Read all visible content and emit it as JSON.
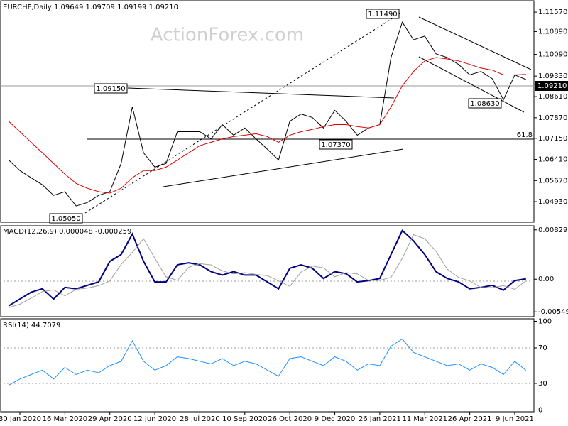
{
  "chart_data": [
    {
      "type": "line",
      "title": "EURCHF,Daily  1.09649 1.09709 1.09199 1.09210",
      "watermark": "ActionForex.com",
      "categories": [
        null,
        "30 Jan 2020",
        null,
        null,
        null,
        "16 Mar 2020",
        null,
        null,
        null,
        "29 Apr 2020",
        null,
        null,
        null,
        "12 Jun 2020",
        null,
        null,
        null,
        "28 Jul 2020",
        null,
        null,
        null,
        "10 Sep 2020",
        null,
        null,
        null,
        "26 Oct 2020",
        null,
        null,
        null,
        "9 Dec 2020",
        null,
        null,
        null,
        "26 Jan 2021",
        null,
        null,
        null,
        "11 Mar 2021",
        null,
        null,
        null,
        "26 Apr 2021",
        null,
        null,
        null,
        "9 Jun 2021",
        null
      ],
      "series": [
        {
          "color": "#000000",
          "values": [
            1.0639,
            1.0602,
            1.0577,
            1.0552,
            1.0515,
            1.0528,
            1.0478,
            1.049,
            1.0515,
            1.0528,
            1.0627,
            1.0825,
            1.0664,
            1.0614,
            1.0627,
            1.0738,
            1.0738,
            1.0738,
            1.0713,
            1.0763,
            1.0726,
            1.0751,
            1.0713,
            1.0677,
            1.0639,
            1.0775,
            1.08,
            1.0788,
            1.0751,
            1.0813,
            1.0775,
            1.0726,
            1.0751,
            1.0763,
            1.0998,
            1.1122,
            1.106,
            1.1073,
            1.1011,
            1.0998,
            1.0974,
            1.0937,
            1.0949,
            1.0924,
            1.085,
            1.0937,
            1.0921
          ]
        },
        {
          "color": "#e00000",
          "values": [
            1.0775,
            1.0738,
            1.0701,
            1.0664,
            1.0627,
            1.059,
            1.0557,
            1.054,
            1.0528,
            1.0523,
            1.054,
            1.0577,
            1.0602,
            1.0602,
            1.0614,
            1.0639,
            1.0664,
            1.0689,
            1.0701,
            1.0713,
            1.0721,
            1.0726,
            1.0731,
            1.0721,
            1.0701,
            1.0726,
            1.0738,
            1.0746,
            1.0756,
            1.0763,
            1.0763,
            1.0756,
            1.0751,
            1.0763,
            1.0825,
            1.0899,
            1.0949,
            1.0986,
            1.0998,
            1.0993,
            1.0986,
            1.0974,
            1.0961,
            1.0954,
            1.0937,
            1.0937,
            1.0939
          ]
        }
      ],
      "ylim": [
        1.0421,
        1.1197
      ],
      "yticks": [
        {
          "value": 1.1157,
          "label": "1.11570"
        },
        {
          "value": 1.1089,
          "label": "1.10890"
        },
        {
          "value": 1.1009,
          "label": "1.10090"
        },
        {
          "value": 1.0933,
          "label": "1.09330"
        },
        {
          "value": 1.0861,
          "label": "1.08610"
        },
        {
          "value": 1.0787,
          "label": "1.07870"
        },
        {
          "value": 1.0715,
          "label": "1.07150"
        },
        {
          "value": 1.0641,
          "label": "1.06410"
        },
        {
          "value": 1.0567,
          "label": "1.05670"
        },
        {
          "value": 1.0493,
          "label": "1.04930"
        }
      ],
      "price_label": "1.09210",
      "annotations": [
        "1.11490",
        "1.09150",
        "1.08630",
        "1.07370",
        "1.05050",
        "61.8"
      ]
    },
    {
      "type": "line",
      "title": "MACD(12,26,9) 0.000048 -0.000259",
      "series": [
        {
          "color": "#000080",
          "values": [
            -0.00449,
            -0.00334,
            -0.00219,
            -0.00161,
            -0.00334,
            -0.00138,
            -0.00161,
            -0.00104,
            -0.00046,
            0.003,
            0.00415,
            0.0076,
            0.003,
            -0.00046,
            -0.00046,
            0.00242,
            0.00276,
            0.00242,
            0.00127,
            0.00069,
            0.00127,
            0.00069,
            0.00069,
            -0.00046,
            -0.00161,
            0.00184,
            0.00242,
            0.00184,
            0.00012,
            0.00127,
            0.00092,
            -0.00046,
            -0.00023,
            0.00012,
            0.00415,
            0.00818,
            0.00645,
            0.00415,
            0.00127,
            0.00012,
            -0.00046,
            -0.00161,
            -0.00138,
            -0.00104,
            -0.00184,
            -0.00023,
            4.8e-05
          ]
        },
        {
          "color": "#a0a0a0",
          "values": [
            -0.0048,
            -0.0042,
            -0.0032,
            -0.0021,
            -0.0018,
            -0.0028,
            -0.0017,
            -0.0015,
            -0.0011,
            -0.0003,
            0.0025,
            0.0045,
            0.0068,
            0.0035,
            0.0004,
            -0.0002,
            0.002,
            0.0026,
            0.0024,
            0.0014,
            0.0009,
            0.0011,
            0.0008,
            0.0006,
            -0.0003,
            -0.0012,
            0.0012,
            0.0022,
            0.0019,
            0.0004,
            0.0011,
            0.0009,
            -0.0002,
            -0.0002,
            0.0003,
            0.0035,
            0.0075,
            0.0068,
            0.0047,
            0.0017,
            0.0003,
            -0.0003,
            -0.0014,
            -0.0014,
            -0.0011,
            -0.0017,
            -0.000259
          ]
        }
      ],
      "ylim": [
        -0.0063,
        0.00898
      ],
      "yticks": [
        0.008291,
        {
          "value": 0,
          "label": "0.00"
        },
        -0.005492
      ]
    },
    {
      "type": "line",
      "title": "RSI(14) 44.7079",
      "series": [
        {
          "color": "#1e90ff",
          "values": [
            28,
            35,
            40,
            45,
            35,
            48,
            40,
            45,
            42,
            50,
            55,
            78,
            55,
            45,
            50,
            60,
            58,
            55,
            52,
            58,
            50,
            55,
            52,
            45,
            38,
            58,
            60,
            55,
            50,
            60,
            55,
            45,
            52,
            50,
            72,
            80,
            65,
            60,
            55,
            50,
            52,
            45,
            52,
            48,
            40,
            55,
            44.7079
          ]
        }
      ],
      "ylim": [
        -2,
        102.8
      ],
      "yticks": [
        100,
        70,
        30,
        0
      ]
    }
  ]
}
